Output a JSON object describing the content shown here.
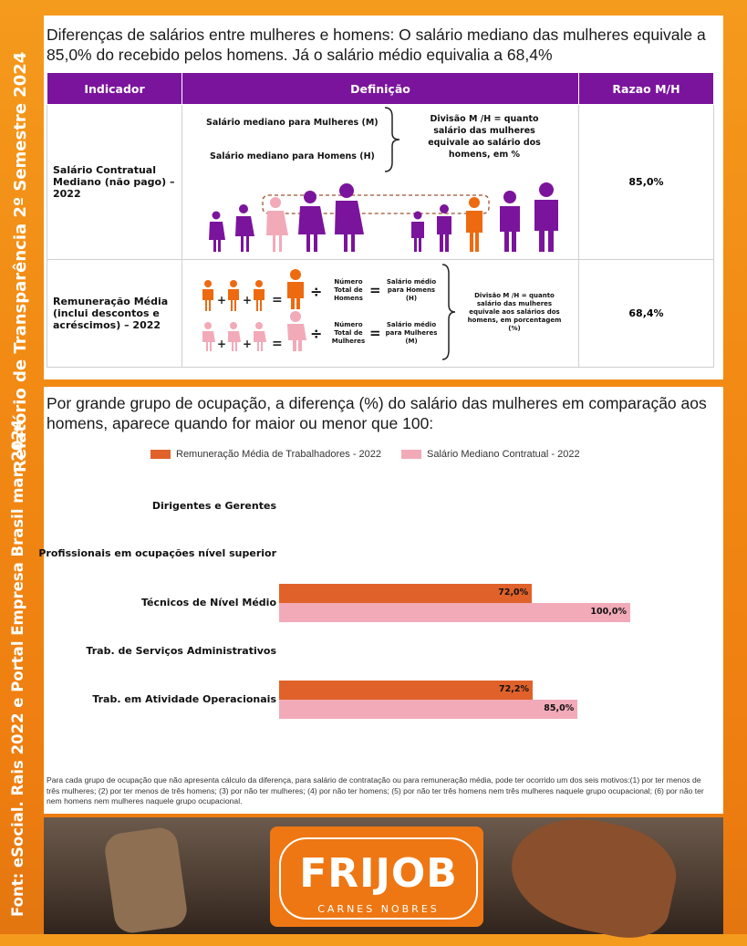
{
  "side": {
    "line1": "Font: eSocial. Rais 2022 e Portal Empresa Brasil mar. 2024",
    "line2": "Relatório de Transparência 2º Semestre 2024"
  },
  "top": {
    "title": "Diferenças de salários entre mulheres e homens: O salário mediano das mulheres equivale a 85,0% do recebido pelos homens. Já o salário médio equivalia a 68,4%",
    "headers": {
      "indicador": "Indicador",
      "definicao": "Definição",
      "razao": "Razao M/H"
    },
    "row1": {
      "label": "Salário Contratual Mediano (não pago) – 2022",
      "def_women": "Salário mediano para Mulheres (M)",
      "def_men": "Salário mediano para Homens (H)",
      "division": "Divisão M /H = quanto salário das mulheres equivale ao salário dos homens, em %",
      "ratio": "85,0%"
    },
    "row2": {
      "label": "Remuneração Média (inclui descontos e acréscimos) – 2022",
      "num_men": "Número Total de Homens",
      "num_women": "Número Total de Mulheres",
      "avg_men": "Salário médio para Homens (H)",
      "avg_women": "Salário médio para Mulheres (M)",
      "division": "Divisão M /H = quanto salário das mulheres equivale aos salários dos homens, em porcentagem (%)",
      "ratio": "68,4%"
    }
  },
  "chart_title": "Por grande grupo de ocupação, a diferença (%) do salário das mulheres em comparação aos homens, aparece quando for maior ou menor que 100:",
  "chart_data": {
    "type": "bar",
    "orientation": "horizontal",
    "categories": [
      "Dirigentes e Gerentes",
      "Profissionais em ocupações nível superior",
      "Técnicos de Nível Médio",
      "Trab. de Serviços Administrativos",
      "Trab. em Atividade Operacionais"
    ],
    "series": [
      {
        "name": "Remuneração Média de Trabalhadores - 2022",
        "color": "#e0622a",
        "values": [
          null,
          null,
          72.0,
          null,
          72.2
        ],
        "labels": [
          null,
          null,
          "72,0%",
          null,
          "72,2%"
        ]
      },
      {
        "name": "Salário Mediano Contratual - 2022",
        "color": "#f2aab9",
        "values": [
          null,
          null,
          100.0,
          null,
          85.0
        ],
        "labels": [
          null,
          null,
          "100,0%",
          null,
          "85,0%"
        ]
      }
    ],
    "xlim": [
      0,
      100
    ],
    "legend_position": "top"
  },
  "footnote": "Para cada grupo de ocupação que não apresenta cálculo da diferença, para salário de contratação ou para remuneração média, pode ter ocorrido um dos seis motivos:(1) por ter menos de três mulheres; (2) por ter menos de três homens; (3) por não ter mulheres; (4) por não ter homens; (5) por não ter três homens nem três mulheres naquele grupo ocupacional; (6) por não ter nem homens nem mulheres naquele grupo ocupacional.",
  "logo": {
    "name": "FRIJOB",
    "tagline": "CARNES NOBRES"
  },
  "colors": {
    "purple": "#7b149c",
    "orange": "#ee6a10",
    "pink": "#f2aab9"
  }
}
